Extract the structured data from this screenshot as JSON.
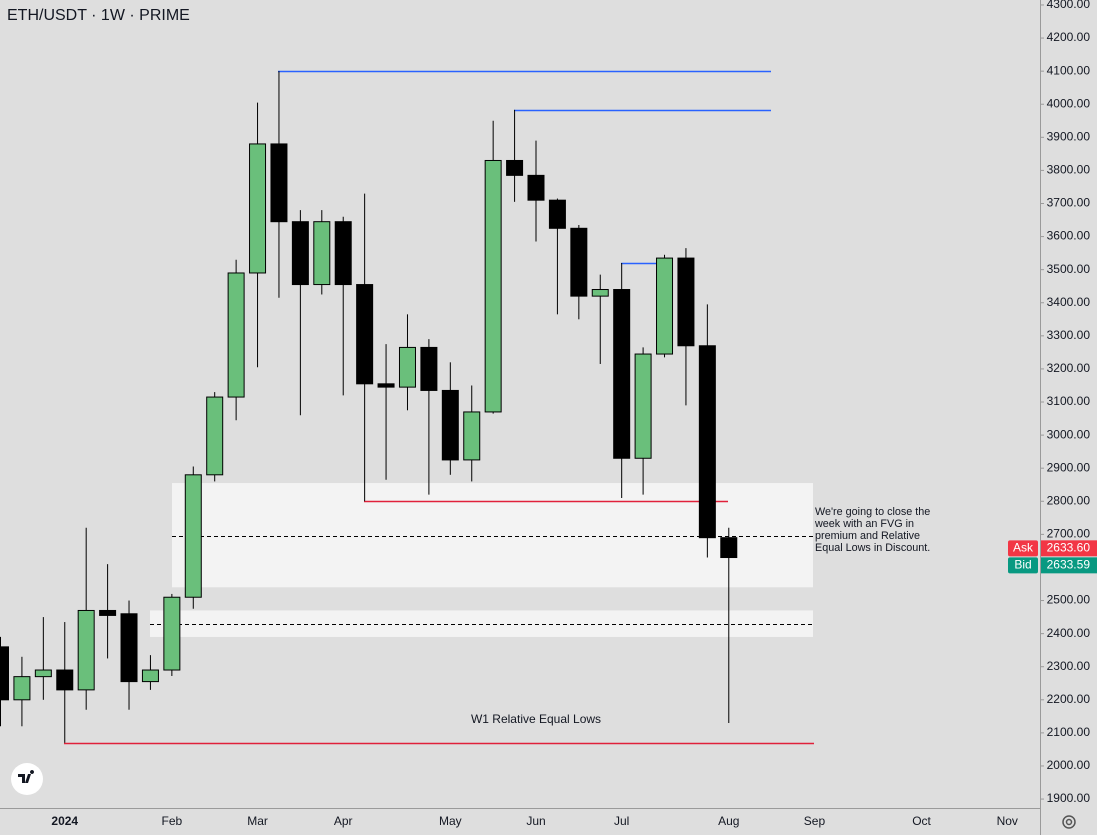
{
  "chart_data": {
    "type": "candlestick",
    "title": "ETH/USDT · 1W · PRIME",
    "categories": [
      null,
      null,
      null,
      "2024",
      null,
      null,
      null,
      null,
      "Feb",
      null,
      null,
      null,
      "Mar",
      null,
      null,
      null,
      "Apr",
      null,
      null,
      null,
      null,
      "May",
      null,
      null,
      null,
      "Jun",
      null,
      null,
      null,
      "Jul",
      null,
      null,
      null,
      null,
      "Aug",
      null,
      null,
      null,
      "Sep",
      null,
      null,
      null,
      null,
      "Oct",
      null,
      null,
      null,
      "Nov"
    ],
    "open": [
      2360,
      2200,
      2270,
      2290,
      2230,
      2470,
      2460,
      2255,
      2290,
      2510,
      2880,
      3115,
      3490,
      3880,
      3645,
      3455,
      3645,
      3455,
      3155,
      3145,
      3265,
      3135,
      2925,
      3070,
      3830,
      3785,
      3710,
      3625,
      3420,
      3440,
      2930,
      3245,
      3535,
      3270,
      2690,
      null,
      null,
      null,
      null,
      null,
      null,
      null,
      null,
      null,
      null,
      null,
      null,
      null
    ],
    "high": [
      2390,
      2330,
      2450,
      2435,
      2720,
      2610,
      2500,
      2335,
      2520,
      2905,
      3130,
      3530,
      4005,
      4100,
      3680,
      3680,
      3660,
      3730,
      3275,
      3365,
      3290,
      3220,
      3150,
      3950,
      3983,
      3890,
      3715,
      3635,
      3485,
      3520,
      3265,
      3545,
      3565,
      3395,
      2720,
      null,
      null,
      null,
      null,
      null,
      null,
      null,
      null,
      null,
      null,
      null,
      null,
      null
    ],
    "low": [
      2120,
      2120,
      2200,
      2070,
      2170,
      2325,
      2170,
      2230,
      2272,
      2475,
      2860,
      3045,
      3205,
      3415,
      3060,
      3425,
      3120,
      2800,
      2865,
      3075,
      2820,
      2880,
      2860,
      3065,
      3705,
      3585,
      3365,
      3350,
      3215,
      2810,
      2820,
      3235,
      3090,
      2630,
      2130,
      null,
      null,
      null,
      null,
      null,
      null,
      null,
      null,
      null,
      null,
      null,
      null,
      null
    ],
    "close": [
      2200,
      2270,
      2290,
      2230,
      2470,
      2455,
      2255,
      2290,
      2510,
      2880,
      3115,
      3490,
      3880,
      3645,
      3455,
      3645,
      3455,
      3155,
      3145,
      3265,
      3135,
      2925,
      3070,
      3830,
      3785,
      3710,
      3625,
      3420,
      3440,
      2930,
      3245,
      3535,
      3270,
      2690,
      2630,
      null,
      null,
      null,
      null,
      null,
      null,
      null,
      null,
      null,
      null,
      null,
      null,
      null
    ],
    "up_color": "#6abf7b",
    "down_color": "#000000",
    "ylim": [
      1873,
      4315
    ],
    "yticks": [
      {
        "value": 1900,
        "label": "1900.00"
      },
      {
        "value": 2000,
        "label": "2000.00"
      },
      {
        "value": 2100,
        "label": "2100.00"
      },
      {
        "value": 2200,
        "label": "2200.00"
      },
      {
        "value": 2300,
        "label": "2300.00"
      },
      {
        "value": 2400,
        "label": "2400.00"
      },
      {
        "value": 2500,
        "label": "2500.00"
      },
      {
        "value": 2600,
        "label": "2600.00"
      },
      {
        "value": 2700,
        "label": "2700.00"
      },
      {
        "value": 2800,
        "label": "2800.00"
      },
      {
        "value": 2900,
        "label": "2900.00"
      },
      {
        "value": 3000,
        "label": "3000.00"
      },
      {
        "value": 3100,
        "label": "3100.00"
      },
      {
        "value": 3200,
        "label": "3200.00"
      },
      {
        "value": 3300,
        "label": "3300.00"
      },
      {
        "value": 3400,
        "label": "3400.00"
      },
      {
        "value": 3500,
        "label": "3500.00"
      },
      {
        "value": 3600,
        "label": "3600.00"
      },
      {
        "value": 3700,
        "label": "3700.00"
      },
      {
        "value": 3800,
        "label": "3800.00"
      },
      {
        "value": 3900,
        "label": "3900.00"
      },
      {
        "value": 4000,
        "label": "4000.00"
      },
      {
        "value": 4100,
        "label": "4100.00"
      },
      {
        "value": 4200,
        "label": "4200.00"
      },
      {
        "value": 4300,
        "label": "4300.00"
      }
    ],
    "zones": [
      {
        "from": 2540,
        "to": 2855
      },
      {
        "from": 2390,
        "to": 2470
      }
    ],
    "levels": [
      {
        "value": 4100,
        "color": "#2962ff",
        "style": "solid"
      },
      {
        "value": 3983,
        "color": "#2962ff",
        "style": "solid"
      },
      {
        "value": 3520,
        "color": "#2962ff",
        "style": "solid"
      },
      {
        "value": 2800,
        "color": "#e0203a",
        "style": "solid"
      },
      {
        "value": 2070,
        "color": "#e0203a",
        "style": "solid"
      },
      {
        "value": 2695,
        "color": "#000000",
        "style": "dashed"
      },
      {
        "value": 2430,
        "color": "#000000",
        "style": "dashed"
      }
    ],
    "annotations": [
      {
        "lines": [
          "We're going to close the",
          "week with an FVG in",
          "premium and Relative",
          "Equal Lows in Discount."
        ]
      },
      {
        "lines": [
          "W1 Relative Equal Lows"
        ]
      }
    ],
    "quotes": [
      {
        "label": "Ask",
        "value": 2633.6,
        "value_label": "2633.60",
        "color": "#f23645"
      },
      {
        "label": "Bid",
        "value": 2633.59,
        "value_label": "2633.59",
        "color": "#089981"
      }
    ]
  }
}
